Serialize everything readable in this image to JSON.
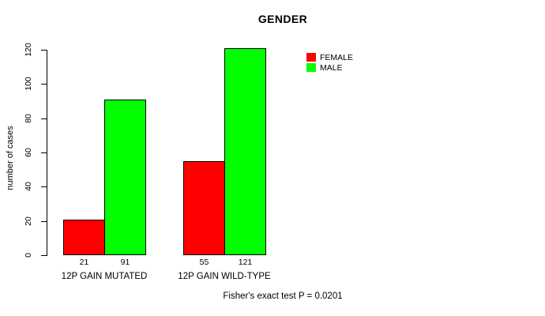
{
  "chart_data": {
    "type": "bar",
    "title": "GENDER",
    "xlabel": "",
    "ylabel": "number of cases",
    "categories": [
      "12P GAIN MUTATED",
      "12P GAIN WILD-TYPE"
    ],
    "series": [
      {
        "name": "FEMALE",
        "color": "#FF0000",
        "values": [
          21,
          55
        ]
      },
      {
        "name": "MALE",
        "color": "#00FF00",
        "values": [
          91,
          121
        ]
      }
    ],
    "bar_value_labels": [
      [
        21,
        91
      ],
      [
        55,
        121
      ]
    ],
    "yticks": [
      0,
      20,
      40,
      60,
      80,
      100,
      120
    ],
    "ylim": [
      0,
      120
    ],
    "grid": false,
    "legend_position": "top-right",
    "legend_entries": [
      "FEMALE",
      "MALE"
    ],
    "annotation": "Fisher's exact test P = 0.0201",
    "axis_color": "#000000",
    "bar_border_color": "#000000",
    "text_color": "#000000",
    "background_color": "#FFFFFF"
  }
}
